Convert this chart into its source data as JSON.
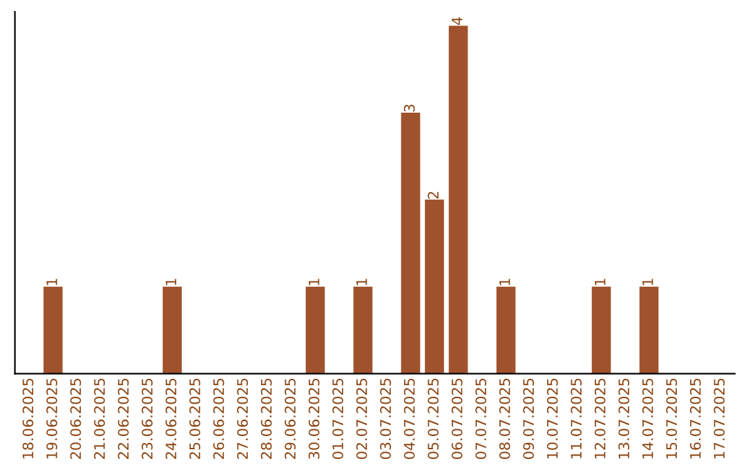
{
  "chart_data": {
    "type": "bar",
    "categories": [
      "18.06.2025",
      "19.06.2025",
      "20.06.2025",
      "21.06.2025",
      "22.06.2025",
      "23.06.2025",
      "24.06.2025",
      "25.06.2025",
      "26.06.2025",
      "27.06.2025",
      "28.06.2025",
      "29.06.2025",
      "30.06.2025",
      "01.07.2025",
      "02.07.2025",
      "03.07.2025",
      "04.07.2025",
      "05.07.2025",
      "06.07.2025",
      "07.07.2025",
      "08.07.2025",
      "09.07.2025",
      "10.07.2025",
      "11.07.2025",
      "12.07.2025",
      "13.07.2025",
      "14.07.2025",
      "15.07.2025",
      "16.07.2025",
      "17.07.2025"
    ],
    "values": [
      0,
      1,
      0,
      0,
      0,
      0,
      1,
      0,
      0,
      0,
      0,
      0,
      1,
      0,
      1,
      0,
      3,
      2,
      4,
      0,
      1,
      0,
      0,
      0,
      1,
      0,
      1,
      0,
      0,
      0
    ],
    "value_labels": [
      null,
      "1",
      null,
      null,
      null,
      null,
      "1",
      null,
      null,
      null,
      null,
      null,
      "1",
      null,
      "1",
      null,
      "3",
      "2",
      "4",
      null,
      "1",
      null,
      null,
      null,
      "1",
      null,
      "1",
      null,
      null,
      null
    ],
    "color": "#a0522d",
    "grid": false,
    "legend": false
  }
}
